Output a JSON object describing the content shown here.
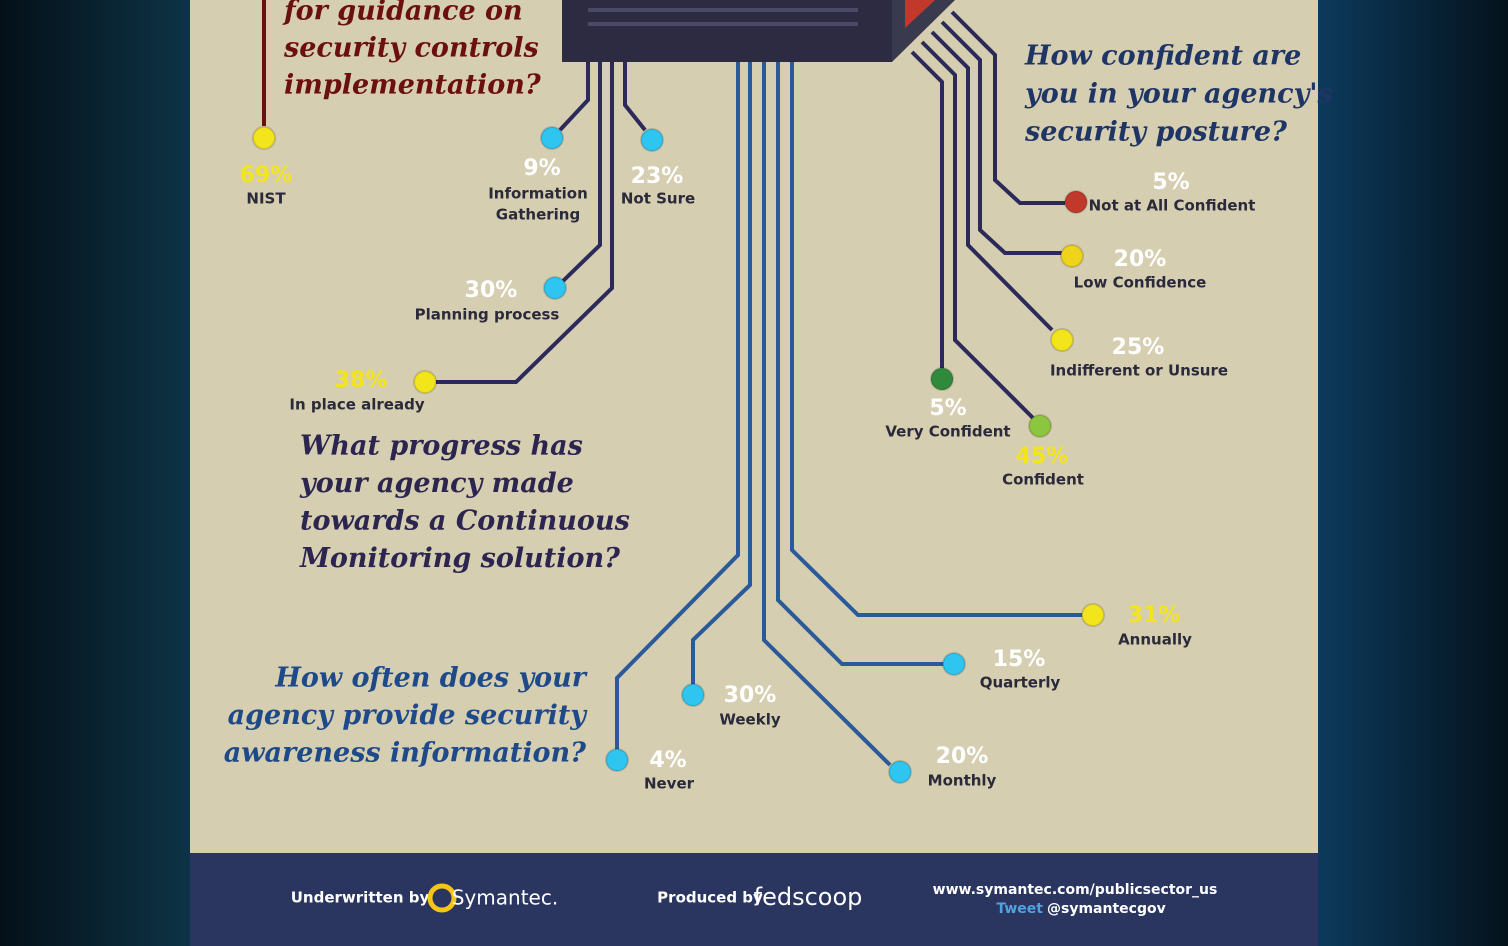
{
  "guidance": {
    "question_lines": [
      "for guidance on",
      "security controls",
      "implementation?"
    ],
    "items": [
      {
        "value": "69%",
        "label": [
          "NIST"
        ]
      }
    ]
  },
  "progress": {
    "question_lines": [
      "What progress has",
      "your agency made",
      "towards a Continuous",
      "Monitoring solution?"
    ],
    "items": [
      {
        "value": "9%",
        "label": [
          "Information",
          "Gathering"
        ]
      },
      {
        "value": "23%",
        "label": [
          "Not Sure"
        ]
      },
      {
        "value": "30%",
        "label": [
          "Planning process"
        ]
      },
      {
        "value": "38%",
        "label": [
          "In place already"
        ]
      }
    ]
  },
  "confidence": {
    "question_lines": [
      "How confident are",
      "you in your agency's",
      "security posture?"
    ],
    "items": [
      {
        "value": "5%",
        "label": [
          "Not at All Confident"
        ]
      },
      {
        "value": "20%",
        "label": [
          "Low Confidence"
        ]
      },
      {
        "value": "25%",
        "label": [
          "Indifferent or Unsure"
        ]
      },
      {
        "value": "5%",
        "label": [
          "Very Confident"
        ]
      },
      {
        "value": "45%",
        "label": [
          "Confident"
        ]
      }
    ]
  },
  "awareness": {
    "question_lines": [
      "How often does your",
      "agency provide security",
      "awareness information?"
    ],
    "items": [
      {
        "value": "4%",
        "label": [
          "Never"
        ]
      },
      {
        "value": "30%",
        "label": [
          "Weekly"
        ]
      },
      {
        "value": "20%",
        "label": [
          "Monthly"
        ]
      },
      {
        "value": "15%",
        "label": [
          "Quarterly"
        ]
      },
      {
        "value": "31%",
        "label": [
          "Annually"
        ]
      }
    ]
  },
  "footer": {
    "underwritten": "Underwritten by",
    "sponsor": "Symantec.",
    "produced": "Produced by",
    "producer": "fedscoop",
    "url": "www.symantec.com/publicsector_us",
    "tweet": "Tweet",
    "handle": "@symantecgov"
  }
}
